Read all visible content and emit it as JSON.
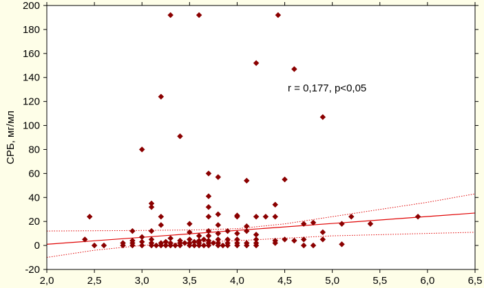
{
  "chart_data": {
    "type": "scatter",
    "title": "",
    "xlabel": "",
    "ylabel": "СРБ, мг/мл",
    "xlim": [
      2.0,
      6.5
    ],
    "ylim": [
      -20,
      200
    ],
    "x_ticks": [
      "2,0",
      "2,5",
      "3,0",
      "3,5",
      "4,0",
      "4,5",
      "5,0",
      "5,5",
      "6,0",
      "6,5"
    ],
    "y_ticks": [
      "-20",
      "0",
      "20",
      "40",
      "60",
      "80",
      "100",
      "120",
      "140",
      "160",
      "180",
      "200"
    ],
    "grid": false,
    "annotation": "r = 0,177, p<0,05",
    "colors": {
      "points": "#8b0000",
      "fit_line": "#e00000",
      "background": "#fefee8",
      "plot_area": "#ffffff"
    },
    "regression": {
      "x": [
        2.0,
        6.5
      ],
      "y": [
        1,
        27
      ]
    },
    "confidence_upper": {
      "x": [
        2.0,
        3.0,
        3.6,
        4.0,
        4.5,
        5.0,
        5.5,
        6.0,
        6.5
      ],
      "y": [
        12,
        12.5,
        13,
        14,
        18,
        24,
        30,
        36,
        43
      ]
    },
    "confidence_lower": {
      "x": [
        2.0,
        2.5,
        3.0,
        3.6,
        4.0,
        4.5,
        5.0,
        5.5,
        6.0,
        6.5
      ],
      "y": [
        -10,
        -4,
        0,
        3,
        4,
        6,
        8,
        9,
        10,
        11
      ]
    },
    "points": [
      [
        2.4,
        5
      ],
      [
        2.45,
        24
      ],
      [
        2.5,
        0
      ],
      [
        2.6,
        0
      ],
      [
        2.8,
        0
      ],
      [
        2.8,
        2
      ],
      [
        2.9,
        0
      ],
      [
        2.9,
        2
      ],
      [
        2.9,
        4
      ],
      [
        2.9,
        12
      ],
      [
        3.0,
        0
      ],
      [
        3.0,
        3
      ],
      [
        3.0,
        7
      ],
      [
        3.0,
        80
      ],
      [
        3.1,
        0
      ],
      [
        3.1,
        2
      ],
      [
        3.1,
        5
      ],
      [
        3.1,
        12
      ],
      [
        3.1,
        32
      ],
      [
        3.1,
        35
      ],
      [
        3.15,
        0
      ],
      [
        3.2,
        0
      ],
      [
        3.2,
        2
      ],
      [
        3.2,
        17
      ],
      [
        3.2,
        24
      ],
      [
        3.2,
        124
      ],
      [
        3.25,
        0
      ],
      [
        3.25,
        3
      ],
      [
        3.3,
        0
      ],
      [
        3.3,
        2
      ],
      [
        3.3,
        6
      ],
      [
        3.3,
        192
      ],
      [
        3.35,
        0
      ],
      [
        3.4,
        0
      ],
      [
        3.4,
        2
      ],
      [
        3.4,
        4
      ],
      [
        3.4,
        91
      ],
      [
        3.45,
        2
      ],
      [
        3.5,
        0
      ],
      [
        3.5,
        2
      ],
      [
        3.5,
        5
      ],
      [
        3.5,
        11
      ],
      [
        3.5,
        18
      ],
      [
        3.55,
        0
      ],
      [
        3.55,
        3
      ],
      [
        3.6,
        0
      ],
      [
        3.6,
        2
      ],
      [
        3.6,
        4
      ],
      [
        3.6,
        8
      ],
      [
        3.6,
        192
      ],
      [
        3.65,
        0
      ],
      [
        3.65,
        5
      ],
      [
        3.7,
        0
      ],
      [
        3.7,
        2
      ],
      [
        3.7,
        4
      ],
      [
        3.7,
        8
      ],
      [
        3.7,
        12
      ],
      [
        3.7,
        24
      ],
      [
        3.7,
        32
      ],
      [
        3.7,
        41
      ],
      [
        3.7,
        60
      ],
      [
        3.75,
        2
      ],
      [
        3.8,
        0
      ],
      [
        3.8,
        2
      ],
      [
        3.8,
        5
      ],
      [
        3.8,
        10
      ],
      [
        3.8,
        17
      ],
      [
        3.8,
        26
      ],
      [
        3.8,
        57
      ],
      [
        3.85,
        0
      ],
      [
        3.9,
        0
      ],
      [
        3.9,
        2
      ],
      [
        3.9,
        5
      ],
      [
        3.9,
        12
      ],
      [
        4.0,
        0
      ],
      [
        4.0,
        2
      ],
      [
        4.0,
        5
      ],
      [
        4.0,
        10
      ],
      [
        4.0,
        24
      ],
      [
        4.0,
        25
      ],
      [
        4.1,
        0
      ],
      [
        4.1,
        2
      ],
      [
        4.1,
        12
      ],
      [
        4.1,
        16
      ],
      [
        4.1,
        54
      ],
      [
        4.2,
        0
      ],
      [
        4.2,
        2
      ],
      [
        4.2,
        5
      ],
      [
        4.2,
        9
      ],
      [
        4.2,
        24
      ],
      [
        4.2,
        152
      ],
      [
        4.3,
        24
      ],
      [
        4.4,
        2
      ],
      [
        4.4,
        4
      ],
      [
        4.4,
        24
      ],
      [
        4.4,
        34
      ],
      [
        4.43,
        192
      ],
      [
        4.5,
        5
      ],
      [
        4.5,
        55
      ],
      [
        4.6,
        4
      ],
      [
        4.6,
        147
      ],
      [
        4.7,
        0
      ],
      [
        4.7,
        5
      ],
      [
        4.7,
        18
      ],
      [
        4.8,
        0
      ],
      [
        4.8,
        19
      ],
      [
        4.9,
        5
      ],
      [
        4.9,
        11
      ],
      [
        4.9,
        107
      ],
      [
        5.1,
        1
      ],
      [
        5.1,
        18
      ],
      [
        5.2,
        24
      ],
      [
        5.4,
        18
      ],
      [
        5.9,
        24
      ]
    ]
  }
}
